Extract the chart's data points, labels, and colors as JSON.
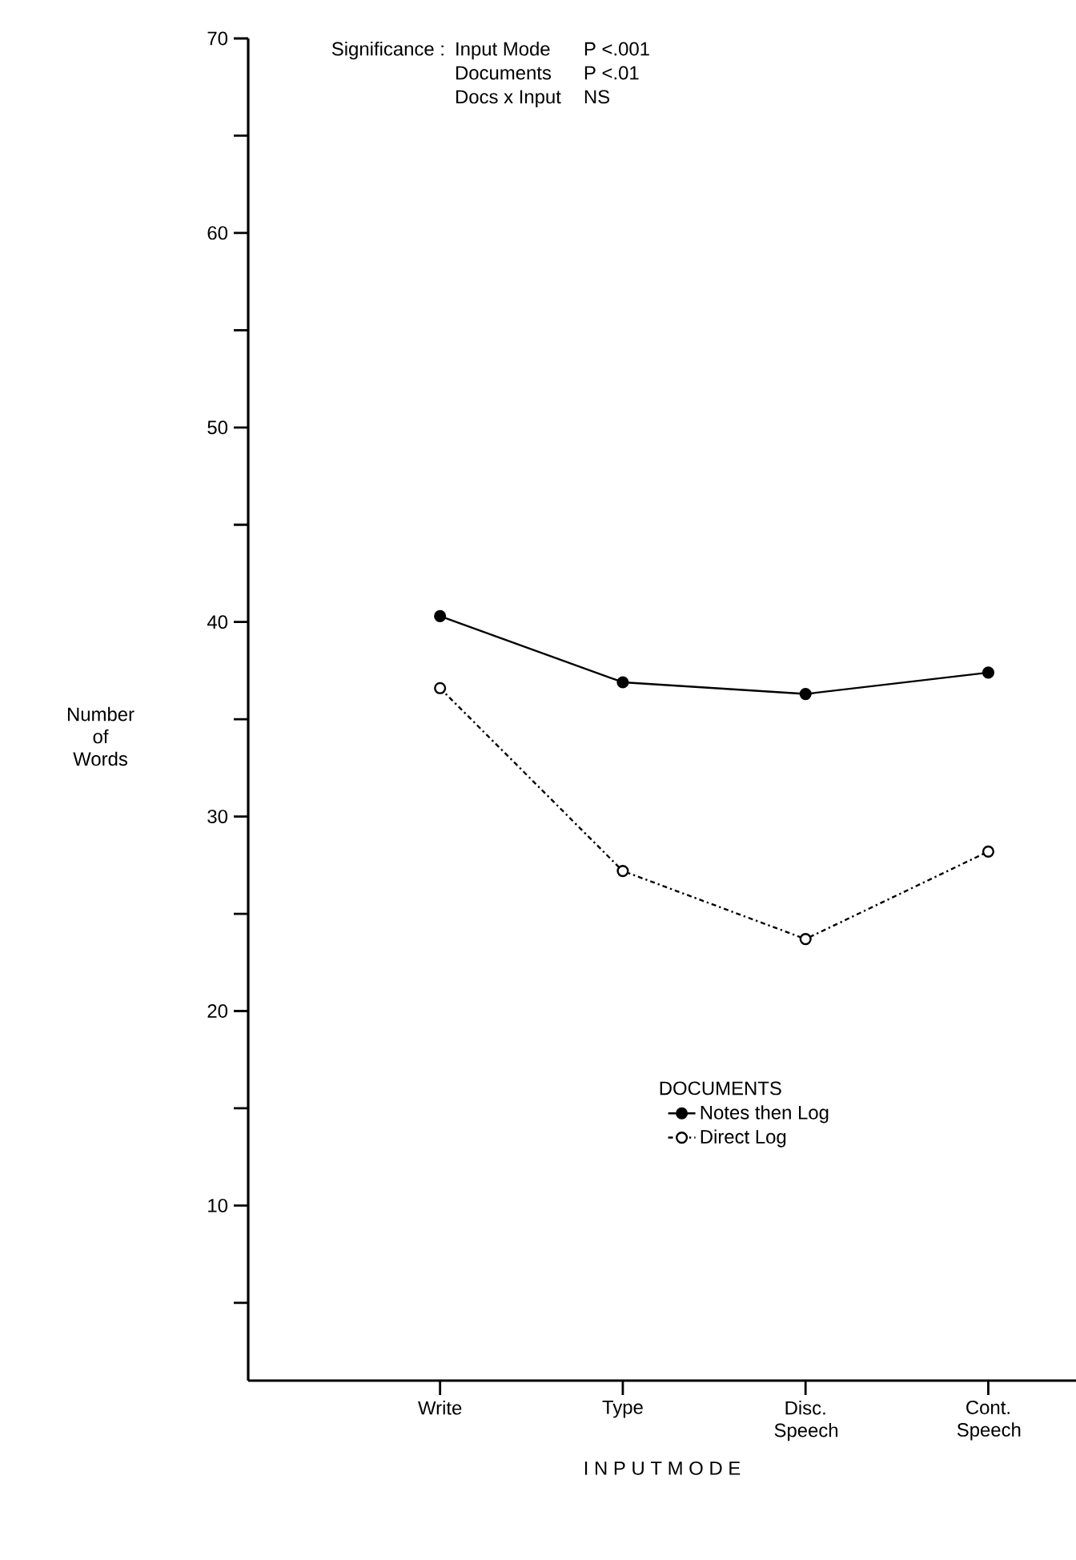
{
  "chart_data": {
    "type": "line",
    "xlabel": "I N P U T   M O D E",
    "ylabel": "Number of Words",
    "categories": [
      "Write",
      "Type",
      "Disc. Speech",
      "Cont. Speech"
    ],
    "series": [
      {
        "name": "Notes then Log",
        "color": "#000000",
        "marker": "circle",
        "line_style": "solid",
        "values": [
          40.3,
          36.9,
          36.3,
          37.4
        ]
      },
      {
        "name": "Direct Log",
        "color": "#000000",
        "marker": "open circle",
        "line_style": "dashdot",
        "values": [
          36.6,
          27.2,
          23.7,
          28.2
        ]
      }
    ],
    "legend_title": "DOCUMENTS",
    "legend": "bottom",
    "grid": false,
    "ylim": [
      1,
      70
    ],
    "yticks": [
      {
        "value": 5,
        "label": null
      },
      10,
      {
        "value": 15,
        "label": null
      },
      20,
      {
        "value": 25,
        "label": null
      },
      30,
      {
        "value": 35,
        "label": null
      },
      40,
      {
        "value": 45,
        "label": null
      },
      50,
      {
        "value": 55,
        "label": null
      },
      60,
      {
        "value": 65,
        "label": null
      },
      70
    ],
    "annotations": [
      "Significance :",
      "Input Mode",
      "P <.001",
      "Documents",
      "P <.01",
      "Docs x Input",
      "NS"
    ]
  }
}
